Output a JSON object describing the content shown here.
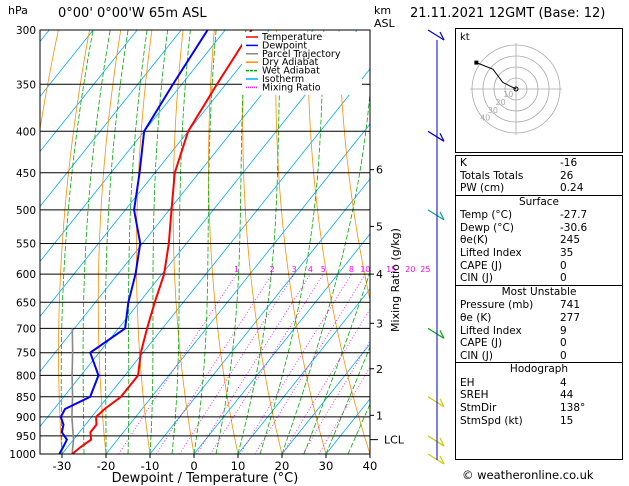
{
  "header": {
    "location": "0°00' 0°00'W 65m ASL",
    "datetime": "21.11.2021 12GMT (Base: 12)",
    "hpa_label": "hPa",
    "km_label": "km",
    "asl_label": "ASL"
  },
  "chart_data": {
    "type": "skew-t",
    "xlabel": "Dewpoint / Temperature (°C)",
    "ylabel_right": "Mixing Ratio (g/kg)",
    "x_ticks": [
      -30,
      -20,
      -10,
      0,
      10,
      20,
      30,
      40
    ],
    "xlim": [
      -35,
      40
    ],
    "pressure_levels": [
      300,
      350,
      400,
      450,
      500,
      550,
      600,
      650,
      700,
      750,
      800,
      850,
      900,
      950,
      1000
    ],
    "ylim": [
      1000,
      300
    ],
    "km_ticks": [
      {
        "label": "1",
        "p": 896
      },
      {
        "label": "2",
        "p": 785
      },
      {
        "label": "3",
        "p": 690
      },
      {
        "label": "4",
        "p": 600
      },
      {
        "label": "5",
        "p": 524
      },
      {
        "label": "6",
        "p": 446
      }
    ],
    "lcl": {
      "label": "LCL",
      "p": 960
    },
    "mixing_ratio_labels": [
      "1",
      "2",
      "3",
      "4",
      "5",
      "8",
      "10",
      "15",
      "20",
      "25"
    ],
    "mixing_ratio_values": [
      1,
      2,
      3,
      4,
      5,
      8,
      10,
      15,
      20,
      25
    ],
    "legend": {
      "placement": "top-left",
      "entries": [
        {
          "label": "Temperature",
          "color": "#ff0000"
        },
        {
          "label": "Dewpoint",
          "color": "#0000ff"
        },
        {
          "label": "Parcel Trajectory",
          "color": "#888888"
        },
        {
          "label": "Dry Adiabat",
          "color": "#ff8c00"
        },
        {
          "label": "Wet Adiabat",
          "color": "#00aa00"
        },
        {
          "label": "Isotherm",
          "color": "#00aaff"
        },
        {
          "label": "Mixing Ratio",
          "color": "#ff00ff"
        }
      ]
    },
    "temperature": [
      [
        1000,
        -27.7
      ],
      [
        980,
        -27.0
      ],
      [
        960,
        -26.0
      ],
      [
        940,
        -27.5
      ],
      [
        920,
        -27.5
      ],
      [
        900,
        -29.0
      ],
      [
        880,
        -28.5
      ],
      [
        850,
        -27.0
      ],
      [
        800,
        -27.0
      ],
      [
        750,
        -30.5
      ],
      [
        700,
        -33.5
      ],
      [
        650,
        -36.5
      ],
      [
        600,
        -39.5
      ],
      [
        550,
        -44.0
      ],
      [
        500,
        -49.5
      ],
      [
        450,
        -55.5
      ],
      [
        400,
        -60.0
      ],
      [
        350,
        -62.0
      ],
      [
        300,
        -64.0
      ]
    ],
    "dewpoint": [
      [
        1000,
        -30.6
      ],
      [
        980,
        -31.0
      ],
      [
        960,
        -31.5
      ],
      [
        940,
        -34.0
      ],
      [
        920,
        -35.0
      ],
      [
        900,
        -37.0
      ],
      [
        880,
        -37.5
      ],
      [
        850,
        -34.0
      ],
      [
        800,
        -36.0
      ],
      [
        750,
        -42.0
      ],
      [
        700,
        -38.5
      ],
      [
        650,
        -42.5
      ],
      [
        600,
        -46.0
      ],
      [
        550,
        -50.5
      ],
      [
        500,
        -58.0
      ],
      [
        450,
        -63.5
      ],
      [
        400,
        -70.0
      ],
      [
        350,
        -72.0
      ],
      [
        300,
        -74.0
      ]
    ],
    "parcel": [
      [
        1000,
        -27.7
      ],
      [
        960,
        -30.0
      ],
      [
        900,
        -34.5
      ],
      [
        850,
        -38.0
      ],
      [
        800,
        -42.0
      ],
      [
        750,
        -46.0
      ],
      [
        700,
        -50.5
      ]
    ]
  },
  "hodograph": {
    "label": "kt",
    "ring_labels": [
      "10",
      "20",
      "30",
      "40"
    ],
    "points": [
      [
        0,
        0
      ],
      [
        -4,
        2
      ],
      [
        -7,
        6
      ],
      [
        -12,
        8
      ]
    ]
  },
  "indices": {
    "k": {
      "label": "K",
      "value": "-16"
    },
    "totals": {
      "label": "Totals Totals",
      "value": "26"
    },
    "pw": {
      "label": "PW (cm)",
      "value": "0.24"
    }
  },
  "surface": {
    "title": "Surface",
    "rows": [
      {
        "label": "Temp (°C)",
        "value": "-27.7"
      },
      {
        "label": "Dewp (°C)",
        "value": "-30.6"
      },
      {
        "label": "θe(K)",
        "value": "245"
      },
      {
        "label": "Lifted Index",
        "value": "35"
      },
      {
        "label": "CAPE (J)",
        "value": "0"
      },
      {
        "label": "CIN (J)",
        "value": "0"
      }
    ]
  },
  "most_unstable": {
    "title": "Most Unstable",
    "rows": [
      {
        "label": "Pressure (mb)",
        "value": "741"
      },
      {
        "label": "θe (K)",
        "value": "277"
      },
      {
        "label": "Lifted Index",
        "value": "9"
      },
      {
        "label": "CAPE (J)",
        "value": "0"
      },
      {
        "label": "CIN (J)",
        "value": "0"
      }
    ]
  },
  "hodograph_params": {
    "title": "Hodograph",
    "rows": [
      {
        "label": "EH",
        "value": "4"
      },
      {
        "label": "SREH",
        "value": "44"
      },
      {
        "label": "StmDir",
        "value": "138°"
      },
      {
        "label": "StmSpd (kt)",
        "value": "15"
      }
    ]
  },
  "credit": "© weatheronline.co.uk",
  "colors": {
    "temperature": "#ff0000",
    "dewpoint": "#0000ff",
    "parcel": "#888888",
    "dry_adiabat": "#ff8c00",
    "wet_adiabat": "#00aa00",
    "isotherm": "#00aaff",
    "mixing_ratio": "#ff00ff"
  }
}
